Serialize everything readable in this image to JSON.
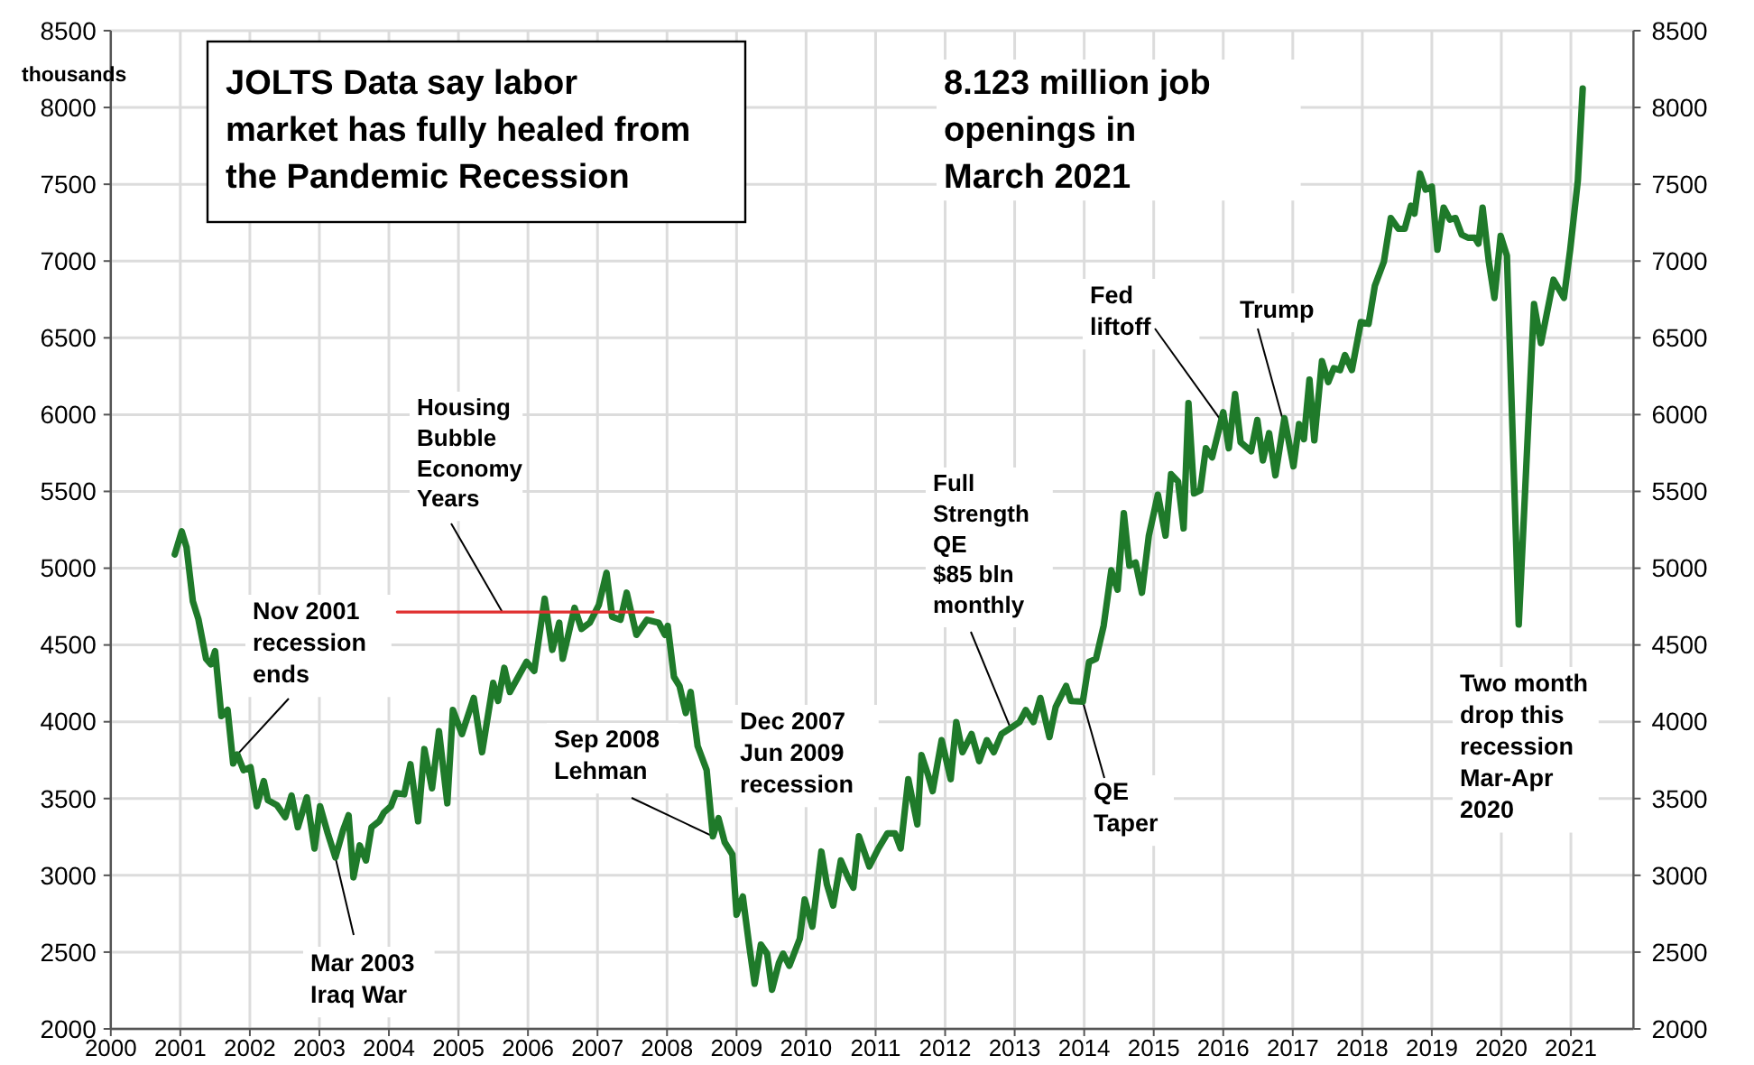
{
  "chart_data": {
    "type": "line",
    "title": "JOLTS Data say labor\nmarket has fully healed from\nthe Pandemic Recession",
    "ylabel": "thousands",
    "xlim": [
      2000,
      2021.9
    ],
    "xticks": [
      2000,
      2001,
      2002,
      2003,
      2004,
      2005,
      2006,
      2007,
      2008,
      2009,
      2010,
      2011,
      2012,
      2013,
      2014,
      2015,
      2016,
      2017,
      2018,
      2019,
      2020,
      2021
    ],
    "ylim": [
      2000,
      8500
    ],
    "yticks": [
      2000,
      2500,
      3000,
      3500,
      4000,
      4500,
      5000,
      5500,
      6000,
      6500,
      7000,
      7500,
      8000,
      8500
    ],
    "y2lim": [
      2000,
      8500
    ],
    "y2ticks": [
      2000,
      2500,
      3000,
      3500,
      4000,
      4500,
      5000,
      5500,
      6000,
      6500,
      7000,
      7500,
      8000,
      8500
    ],
    "grid": true,
    "marker": "none",
    "line_style": "solid",
    "series": [
      {
        "color": "#1f7a2a",
        "x": [
          2000.92,
          2001.02,
          2001.09,
          2001.18,
          2001.26,
          2001.37,
          2001.44,
          2001.5,
          2001.59,
          2001.68,
          2001.76,
          2001.82,
          2001.91,
          2002.01,
          2002.1,
          2002.2,
          2002.26,
          2002.39,
          2002.51,
          2002.6,
          2002.69,
          2002.82,
          2002.93,
          2003.01,
          2003.12,
          2003.23,
          2003.34,
          2003.42,
          2003.49,
          2003.58,
          2003.67,
          2003.75,
          2003.86,
          2003.93,
          2004.03,
          2004.1,
          2004.22,
          2004.31,
          2004.42,
          2004.51,
          2004.62,
          2004.72,
          2004.84,
          2004.92,
          2005.05,
          2005.22,
          2005.34,
          2005.5,
          2005.57,
          2005.66,
          2005.74,
          2005.98,
          2006.09,
          2006.24,
          2006.35,
          2006.45,
          2006.5,
          2006.67,
          2006.77,
          2006.89,
          2007.02,
          2007.13,
          2007.21,
          2007.33,
          2007.42,
          2007.56,
          2007.71,
          2007.88,
          2007.97,
          2008.01,
          2008.1,
          2008.18,
          2008.27,
          2008.34,
          2008.44,
          2008.57,
          2008.66,
          2008.74,
          2008.83,
          2008.94,
          2009,
          2009.09,
          2009.18,
          2009.26,
          2009.35,
          2009.44,
          2009.51,
          2009.61,
          2009.67,
          2009.76,
          2009.91,
          2009.98,
          2010.09,
          2010.22,
          2010.3,
          2010.39,
          2010.5,
          2010.61,
          2010.68,
          2010.76,
          2010.91,
          2011.04,
          2011.17,
          2011.28,
          2011.36,
          2011.47,
          2011.6,
          2011.66,
          2011.76,
          2011.82,
          2011.95,
          2012.08,
          2012.16,
          2012.25,
          2012.38,
          2012.49,
          2012.6,
          2012.7,
          2012.81,
          2012.94,
          2013.07,
          2013.16,
          2013.27,
          2013.37,
          2013.5,
          2013.59,
          2013.74,
          2013.81,
          2013.98,
          2014.07,
          2014.17,
          2014.28,
          2014.39,
          2014.48,
          2014.57,
          2014.65,
          2014.74,
          2014.83,
          2014.93,
          2015.06,
          2015.17,
          2015.25,
          2015.35,
          2015.43,
          2015.5,
          2015.58,
          2015.67,
          2015.75,
          2015.84,
          2016,
          2016.08,
          2016.17,
          2016.25,
          2016.4,
          2016.49,
          2016.57,
          2016.66,
          2016.75,
          2016.88,
          2017.01,
          2017.09,
          2017.16,
          2017.24,
          2017.31,
          2017.42,
          2017.51,
          2017.59,
          2017.68,
          2017.75,
          2017.85,
          2017.98,
          2018.09,
          2018.18,
          2018.31,
          2018.41,
          2018.52,
          2018.61,
          2018.7,
          2018.75,
          2018.83,
          2018.91,
          2019,
          2019.08,
          2019.17,
          2019.26,
          2019.34,
          2019.43,
          2019.52,
          2019.62,
          2019.67,
          2019.73,
          2019.82,
          2019.9,
          2019.99,
          2020.08,
          2020.25,
          2020.47,
          2020.57,
          2020.75,
          2020.9,
          2020.99,
          2021.1,
          2021.17
        ],
        "values": [
          5090,
          5240,
          5135,
          4785,
          4668,
          4410,
          4374,
          4460,
          4037,
          4077,
          3728,
          3787,
          3685,
          3704,
          3450,
          3614,
          3489,
          3457,
          3379,
          3520,
          3313,
          3508,
          3175,
          3450,
          3274,
          3117,
          3293,
          3391,
          2987,
          3195,
          3097,
          3313,
          3352,
          3410,
          3450,
          3536,
          3528,
          3724,
          3352,
          3822,
          3567,
          3939,
          3469,
          4077,
          3920,
          4155,
          3802,
          4253,
          4136,
          4351,
          4194,
          4390,
          4331,
          4801,
          4468,
          4645,
          4410,
          4742,
          4605,
          4645,
          4762,
          4970,
          4684,
          4664,
          4840,
          4566,
          4664,
          4645,
          4566,
          4625,
          4292,
          4233,
          4057,
          4194,
          3842,
          3685,
          3254,
          3372,
          3215,
          3136,
          2744,
          2862,
          2549,
          2294,
          2549,
          2490,
          2255,
          2431,
          2490,
          2411,
          2588,
          2843,
          2666,
          3155,
          2940,
          2803,
          3097,
          2979,
          2920,
          3254,
          3058,
          3175,
          3273,
          3273,
          3175,
          3626,
          3332,
          3783,
          3646,
          3548,
          3880,
          3626,
          3998,
          3802,
          3920,
          3744,
          3880,
          3802,
          3920,
          3959,
          3998,
          4076,
          3998,
          4155,
          3900,
          4096,
          4233,
          4135,
          4131,
          4390,
          4410,
          4625,
          4986,
          4860,
          5358,
          5017,
          5037,
          4840,
          5212,
          5479,
          5212,
          5612,
          5565,
          5259,
          6075,
          5487,
          5507,
          5781,
          5722,
          6016,
          5781,
          6134,
          5820,
          5761,
          5965,
          5702,
          5879,
          5605,
          5977,
          5663,
          5938,
          5840,
          6228,
          5832,
          6349,
          6212,
          6302,
          6290,
          6388,
          6290,
          6603,
          6591,
          6838,
          6995,
          7280,
          7210,
          7210,
          7360,
          7309,
          7570,
          7465,
          7485,
          7074,
          7348,
          7270,
          7280,
          7172,
          7152,
          7152,
          7113,
          7348,
          6995,
          6760,
          7164,
          7035,
          4633,
          6720,
          6466,
          6878,
          6760,
          7074,
          7524,
          8123
        ]
      },
      {
        "color": "#e03030",
        "x": [
          2004.12,
          2007.8
        ],
        "values": [
          4715,
          4715
        ]
      }
    ],
    "annotations": [
      {
        "text": "Nov 2001\nrecession\nends",
        "x": 2001.82,
        "y": 3787
      },
      {
        "text": "Mar 2003\nIraq War",
        "x": 2003.23,
        "y": 3117
      },
      {
        "text": "Housing\nBubble\nEconomy\nYears",
        "x": 2005.63,
        "y": 4715
      },
      {
        "text": "Sep 2008\nLehman",
        "x": 2008.66,
        "y": 3254
      },
      "Dec 2007\nJun 2009\nrecession",
      {
        "text": "Full\nStrength\nQE\n$85 bln\nmonthly",
        "x": 2012.94,
        "y": 3959
      },
      {
        "text": "QE\nTaper",
        "x": 2013.98,
        "y": 4131
      },
      {
        "text": "Fed\nliftoff",
        "x": 2015.97,
        "y": 5960
      },
      {
        "text": "Trump",
        "x": 2016.85,
        "y": 5977
      },
      "Two month\ndrop this\nrecession\nMar-Apr\n2020",
      "8.123 million job\nopenings in\nMarch 2021"
    ]
  }
}
